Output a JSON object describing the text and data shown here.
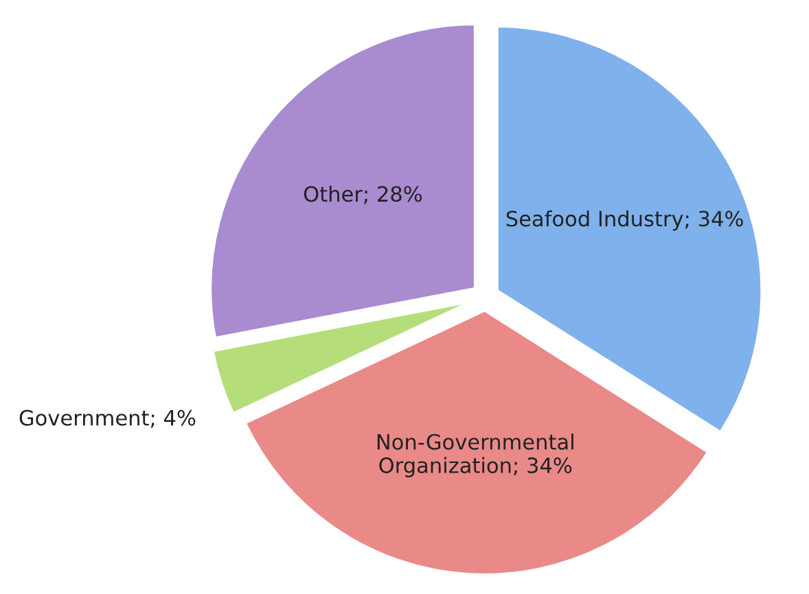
{
  "chart_data": {
    "type": "pie",
    "categories": [
      "Seafood Industry",
      "Non-Governmental Organization",
      "Government",
      "Other"
    ],
    "values": [
      34,
      34,
      4,
      28
    ],
    "value_labels": [
      "34%",
      "34%",
      "4%",
      "28%"
    ],
    "colors": [
      "#7fb2ec",
      "#e98a88",
      "#b5de7a",
      "#a98bd0"
    ],
    "legend": false
  }
}
